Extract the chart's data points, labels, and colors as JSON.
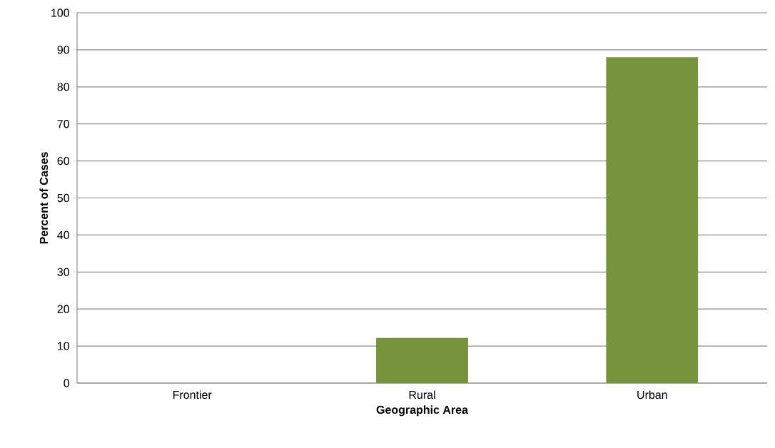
{
  "chart_data": {
    "type": "bar",
    "xlabel": "Geographic Area",
    "ylabel": "Percent of Cases",
    "categories": [
      "Frontier",
      "Rural",
      "Urban"
    ],
    "values": [
      0,
      12.2,
      88
    ],
    "color": "#77933c",
    "ylim": [
      0,
      100
    ],
    "yticks": [
      0,
      10,
      20,
      30,
      40,
      50,
      60,
      70,
      80,
      90,
      100
    ],
    "grid": "y"
  }
}
